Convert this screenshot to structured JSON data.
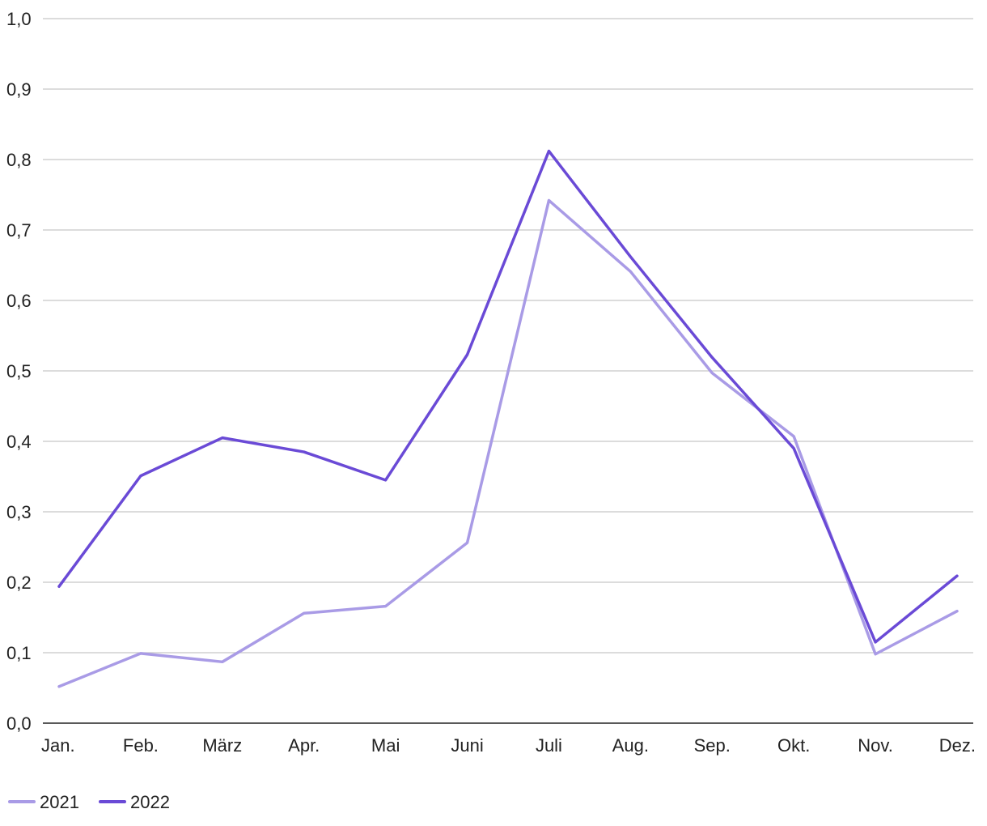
{
  "chart_data": {
    "type": "line",
    "title": "",
    "xlabel": "",
    "ylabel": "",
    "categories": [
      "Jan.",
      "Feb.",
      "März",
      "Apr.",
      "Mai",
      "Juni",
      "Juli",
      "Aug.",
      "Sep.",
      "Okt.",
      "Nov.",
      "Dez."
    ],
    "ylim": [
      0,
      1.0
    ],
    "yticks": [
      "0,0",
      "0,1",
      "0,2",
      "0,3",
      "0,4",
      "0,5",
      "0,6",
      "0,7",
      "0,8",
      "0,9",
      "1,0"
    ],
    "grid": true,
    "legend_position": "bottom-left",
    "series": [
      {
        "name": "2021",
        "color": "#a99be6",
        "values": [
          0.052,
          0.099,
          0.087,
          0.156,
          0.166,
          0.256,
          0.742,
          0.641,
          0.497,
          0.407,
          0.098,
          0.159
        ]
      },
      {
        "name": "2022",
        "color": "#6a4ad6",
        "values": [
          0.194,
          0.351,
          0.405,
          0.385,
          0.345,
          0.523,
          0.812,
          0.662,
          0.519,
          0.39,
          0.115,
          0.209
        ]
      }
    ]
  }
}
